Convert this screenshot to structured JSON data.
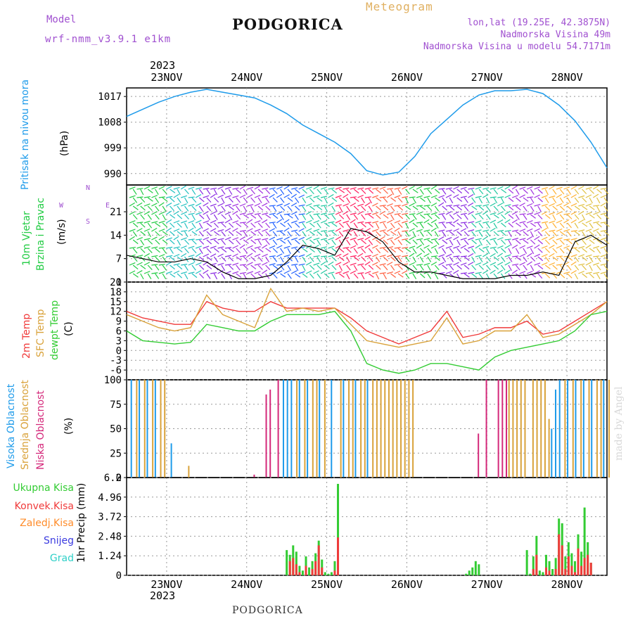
{
  "header": {
    "model_label": "Model",
    "model_value": "wrf-nmm_v3.9.1 e1km",
    "title": "PODGORICA",
    "meteogram_label": "Meteogram",
    "lonlat": "lon,lat (19.25E, 42.3875N)",
    "elevation": "Nadmorska Visina 49m",
    "model_elevation": "Nadmorska Visina u modelu 54.7171m"
  },
  "footer": {
    "station": "PODGORICA",
    "credit": "made by Angel"
  },
  "colors": {
    "pressure": "#1e9bea",
    "temp2m": "#f03a3a",
    "sfctemp": "#d9a23a",
    "dewpt": "#33cc33",
    "high_cloud": "#1e9bea",
    "mid_cloud": "#d9a23a",
    "low_cloud": "#d4287a",
    "total_precip": "#33cc33",
    "convective": "#f03a3a",
    "freezing": "#ff8c2a",
    "snow": "#3a3ae0",
    "hail": "#2fd0c8",
    "wind_legend": "#a050d0"
  },
  "chart_data": [
    {
      "type": "line",
      "panel": "pressure",
      "labels": [
        "Pritisak na nivou mora",
        "(hPa)"
      ],
      "x_unit": "day offset from 23NOV00",
      "x": [
        -0.5,
        -0.3,
        -0.1,
        0.1,
        0.3,
        0.5,
        0.7,
        0.9,
        1.1,
        1.3,
        1.5,
        1.7,
        1.9,
        2.1,
        2.3,
        2.5,
        2.7,
        2.9,
        3.1,
        3.3,
        3.5,
        3.7,
        3.9,
        4.1,
        4.3,
        4.5,
        4.7,
        4.9,
        5.1,
        5.3,
        5.5
      ],
      "y": [
        1010,
        1012.5,
        1015,
        1017,
        1018.5,
        1019.5,
        1018.5,
        1017.5,
        1016.5,
        1014,
        1011,
        1007,
        1004,
        1001,
        997,
        991,
        989.5,
        990.5,
        996,
        1004,
        1009,
        1014,
        1017.5,
        1019,
        1019,
        1019.5,
        1018,
        1014,
        1008.5,
        1001,
        992
      ],
      "yticks": [
        990,
        999,
        1008,
        1017
      ],
      "ylim": [
        986,
        1020
      ],
      "xticks": [
        "23NOV",
        "24NOV",
        "25NOV",
        "26NOV",
        "27NOV",
        "28NOV"
      ],
      "top_year": "2023"
    },
    {
      "type": "scatter",
      "panel": "wind",
      "labels": [
        "10m Vjetar",
        "Brzina i Pravac",
        "(m/s)"
      ],
      "compass": {
        "n": "N",
        "s": "S",
        "w": "W",
        "e": "E"
      },
      "speed_x": [
        -0.5,
        -0.3,
        -0.1,
        0.1,
        0.3,
        0.5,
        0.7,
        0.9,
        1.1,
        1.3,
        1.5,
        1.7,
        1.9,
        2.1,
        2.3,
        2.5,
        2.7,
        2.9,
        3.1,
        3.3,
        3.5,
        3.7,
        3.9,
        4.1,
        4.3,
        4.5,
        4.7,
        4.9,
        5.1,
        5.3,
        5.5
      ],
      "speed": [
        8,
        7,
        6,
        6,
        7,
        6,
        3,
        1,
        1,
        2,
        6,
        11,
        10,
        8,
        16,
        15,
        12,
        6,
        3,
        3,
        2,
        1,
        1,
        1,
        2,
        2,
        3,
        2,
        12,
        14,
        11
      ],
      "yticks": [
        0,
        7,
        14,
        21
      ],
      "ylim": [
        0,
        29
      ],
      "barb_colors": [
        "#22cc44",
        "#20c0c0",
        "#8a2be2",
        "#a030e0",
        "#2060ff",
        "#20c8a0",
        "#ff2060",
        "#ff6040",
        "#22cc44",
        "#8a2be2",
        "#20c8a0",
        "#a030e0",
        "#ffb030",
        "#e0c040"
      ]
    },
    {
      "type": "line",
      "panel": "temperature",
      "labels": [
        "2m Temp",
        "SFC Temp",
        "dewpt Temp",
        "(C)"
      ],
      "x": [
        -0.5,
        -0.3,
        -0.1,
        0.1,
        0.3,
        0.5,
        0.7,
        0.9,
        1.1,
        1.3,
        1.5,
        1.7,
        1.9,
        2.1,
        2.3,
        2.5,
        2.7,
        2.9,
        3.1,
        3.3,
        3.5,
        3.7,
        3.9,
        4.1,
        4.3,
        4.5,
        4.7,
        4.9,
        5.1,
        5.3,
        5.5
      ],
      "series": [
        {
          "name": "2m Temp",
          "values": [
            12,
            10,
            9,
            8,
            8,
            15,
            13,
            12,
            12,
            15,
            13,
            13,
            13,
            13,
            10,
            6,
            4,
            2,
            4,
            6,
            12,
            4,
            5,
            7,
            7,
            9,
            5,
            6,
            9,
            12,
            15
          ]
        },
        {
          "name": "SFC Temp",
          "values": [
            11,
            9,
            7,
            6,
            7,
            17,
            11,
            9,
            7,
            19,
            12,
            13,
            12,
            13,
            8,
            3,
            2,
            1,
            2,
            3,
            10,
            2,
            3,
            6,
            6,
            11,
            4,
            5,
            8,
            11,
            15
          ]
        },
        {
          "name": "dewpt Temp",
          "values": [
            6,
            3,
            2.5,
            2,
            2.5,
            8,
            7,
            6,
            6,
            9,
            11,
            11,
            11,
            12,
            6,
            -4,
            -6,
            -7,
            -6,
            -4,
            -4,
            -5,
            -6,
            -2,
            0,
            1,
            2,
            3,
            6,
            11,
            12
          ]
        }
      ],
      "yticks": [
        -6,
        -3,
        0,
        3,
        6,
        9,
        12,
        15,
        18,
        21
      ],
      "ylim": [
        -9,
        21
      ]
    },
    {
      "type": "bar",
      "panel": "cloud",
      "labels": [
        "Visoka Oblacnost",
        "Srednja Oblacnost",
        "Niska Oblacnost",
        "(%)"
      ],
      "x": [
        -0.45,
        -0.4,
        -0.35,
        -0.3,
        -0.25,
        -0.2,
        -0.15,
        -0.1,
        -0.05,
        0.05,
        0.25,
        1.05,
        1.2,
        1.25,
        1.35,
        1.45,
        1.5,
        1.55,
        1.6,
        1.65,
        1.7,
        1.75,
        1.8,
        1.85,
        1.9,
        1.95,
        2.05,
        2.15,
        2.2,
        2.25,
        2.3,
        2.35,
        2.4,
        2.45,
        2.5,
        2.55,
        2.6,
        2.65,
        2.7,
        2.75,
        2.8,
        2.85,
        2.9,
        2.95,
        3.0,
        3.05,
        3.85,
        3.95,
        4.1,
        4.15,
        4.2,
        4.25,
        4.3,
        4.35,
        4.4,
        4.45,
        4.55,
        4.6,
        4.65,
        4.7,
        4.75,
        4.8,
        4.85,
        4.9,
        4.95,
        5.0,
        5.05,
        5.1,
        5.15,
        5.2,
        5.25,
        5.3,
        5.35,
        5.4,
        5.45,
        5.5
      ],
      "series": [
        {
          "name": "Visoka Oblacnost",
          "values": [
            100,
            0,
            100,
            0,
            100,
            0,
            100,
            0,
            0,
            35,
            0,
            0,
            0,
            0,
            0,
            100,
            100,
            100,
            0,
            100,
            0,
            100,
            0,
            0,
            100,
            0,
            100,
            0,
            100,
            0,
            0,
            100,
            0,
            0,
            100,
            0,
            0,
            0,
            0,
            0,
            0,
            0,
            0,
            0,
            0,
            0,
            0,
            0,
            0,
            0,
            0,
            0,
            0,
            0,
            0,
            0,
            0,
            0,
            0,
            0,
            0,
            50,
            90,
            100,
            0,
            100,
            0,
            100,
            0,
            100,
            0,
            100,
            0,
            0,
            100,
            0
          ]
        },
        {
          "name": "Srednja Oblacnost",
          "values": [
            0,
            100,
            0,
            100,
            0,
            100,
            0,
            100,
            100,
            0,
            12,
            0,
            0,
            0,
            0,
            0,
            0,
            0,
            100,
            0,
            100,
            0,
            100,
            100,
            0,
            100,
            0,
            100,
            0,
            100,
            100,
            0,
            100,
            100,
            0,
            100,
            100,
            100,
            100,
            100,
            100,
            100,
            100,
            100,
            100,
            100,
            0,
            0,
            0,
            0,
            0,
            100,
            100,
            100,
            100,
            100,
            100,
            100,
            100,
            100,
            60,
            0,
            0,
            0,
            100,
            0,
            100,
            0,
            100,
            0,
            100,
            0,
            100,
            100,
            0,
            100
          ]
        },
        {
          "name": "Niska Oblacnost",
          "values": [
            0,
            0,
            0,
            0,
            0,
            0,
            0,
            0,
            0,
            0,
            0,
            3,
            85,
            90,
            100,
            0,
            0,
            0,
            0,
            0,
            0,
            0,
            0,
            0,
            0,
            0,
            0,
            0,
            0,
            0,
            0,
            0,
            0,
            0,
            0,
            0,
            0,
            0,
            0,
            0,
            0,
            0,
            0,
            0,
            0,
            0,
            45,
            100,
            100,
            100,
            100,
            0,
            0,
            0,
            0,
            0,
            0,
            0,
            0,
            0,
            0,
            0,
            0,
            0,
            0,
            0,
            0,
            0,
            0,
            0,
            0,
            0,
            0,
            0,
            0,
            0
          ]
        }
      ],
      "yticks": [
        0,
        25,
        50,
        75,
        100
      ],
      "ylim": [
        0,
        100
      ]
    },
    {
      "type": "bar",
      "panel": "precipitation",
      "labels": [
        "Ukupna Kisa",
        "Konvek.Kisa",
        "Zaledj.Kisa",
        "Snijeg",
        "Grad",
        "1hr Precip (mm)"
      ],
      "x": [
        1.5,
        1.54,
        1.58,
        1.62,
        1.66,
        1.7,
        1.74,
        1.78,
        1.82,
        1.86,
        1.9,
        1.94,
        1.98,
        2.02,
        2.06,
        2.1,
        2.14,
        3.74,
        3.78,
        3.82,
        3.86,
        3.9,
        4.5,
        4.54,
        4.58,
        4.62,
        4.66,
        4.7,
        4.74,
        4.78,
        4.82,
        4.86,
        4.9,
        4.94,
        4.98,
        5.02,
        5.06,
        5.1,
        5.14,
        5.18,
        5.22,
        5.26,
        5.3,
        5.34,
        5.38,
        5.42,
        5.46,
        5.5
      ],
      "series": [
        {
          "name": "Ukupna Kisa",
          "values": [
            1.6,
            1.3,
            1.9,
            1.5,
            0.6,
            0.3,
            1.2,
            0.5,
            0.9,
            1.4,
            2.2,
            1.0,
            0.2,
            0.1,
            0.2,
            0.9,
            5.8,
            0.1,
            0.3,
            0.5,
            0.9,
            0.7,
            1.6,
            0.1,
            1.2,
            2.5,
            0.3,
            0.2,
            1.3,
            0.9,
            0.4,
            1.1,
            3.6,
            3.3,
            1.2,
            2.1,
            1.4,
            0.9,
            2.6,
            1.5,
            4.3,
            2.1,
            0.8,
            0,
            0,
            0,
            0,
            0
          ]
        },
        {
          "name": "Konvek.Kisa",
          "values": [
            0,
            0.9,
            1.1,
            0.7,
            0.2,
            0,
            0.6,
            0,
            0.4,
            0.9,
            1.9,
            0.5,
            0,
            0,
            0,
            0.3,
            2.4,
            0,
            0,
            0,
            0,
            0,
            0,
            0,
            0.4,
            1.3,
            0,
            0,
            0.5,
            0.3,
            0,
            0.4,
            2.6,
            1.9,
            0.4,
            1.2,
            0.6,
            0.2,
            1.7,
            0.6,
            1.1,
            1.3,
            0.8,
            0,
            0,
            0,
            0,
            0
          ]
        },
        {
          "name": "Zaledj.Kisa",
          "values": [
            0,
            0,
            0,
            0,
            0,
            0,
            0,
            0,
            0,
            0,
            0,
            0,
            0,
            0,
            0,
            0,
            0,
            0,
            0,
            0,
            0,
            0,
            0,
            0,
            0,
            0,
            0,
            0,
            0,
            0,
            0,
            0,
            0,
            0,
            0,
            0,
            0,
            0,
            0,
            0,
            0,
            0,
            0,
            0,
            0,
            0,
            0,
            0
          ]
        },
        {
          "name": "Snijeg",
          "values": [
            0,
            0,
            0,
            0,
            0,
            0,
            0,
            0,
            0,
            0,
            0,
            0,
            0,
            0,
            0,
            0,
            0,
            0,
            0,
            0,
            0,
            0,
            0,
            0,
            0,
            0,
            0,
            0,
            0,
            0,
            0,
            0,
            0,
            0,
            0,
            0,
            0,
            0,
            0,
            0,
            0,
            0,
            0,
            0,
            0,
            0,
            0,
            0
          ]
        },
        {
          "name": "Grad",
          "values": [
            0,
            0,
            0,
            0,
            0,
            0,
            0,
            0,
            0,
            0,
            0,
            0,
            0,
            0,
            0,
            0,
            0,
            0,
            0,
            0,
            0,
            0,
            0,
            0,
            0,
            0,
            0,
            0,
            0,
            0,
            0,
            0,
            0,
            0,
            0,
            0,
            0,
            0,
            0,
            0,
            0,
            0,
            0,
            0,
            0,
            0,
            0,
            0
          ]
        }
      ],
      "yticks": [
        0,
        1.24,
        2.48,
        3.72,
        4.96,
        6.2
      ],
      "ylim": [
        0,
        6.2
      ],
      "xticks": [
        "23NOV",
        "24NOV",
        "25NOV",
        "26NOV",
        "27NOV",
        "28NOV"
      ],
      "bottom_year": "2023"
    }
  ]
}
